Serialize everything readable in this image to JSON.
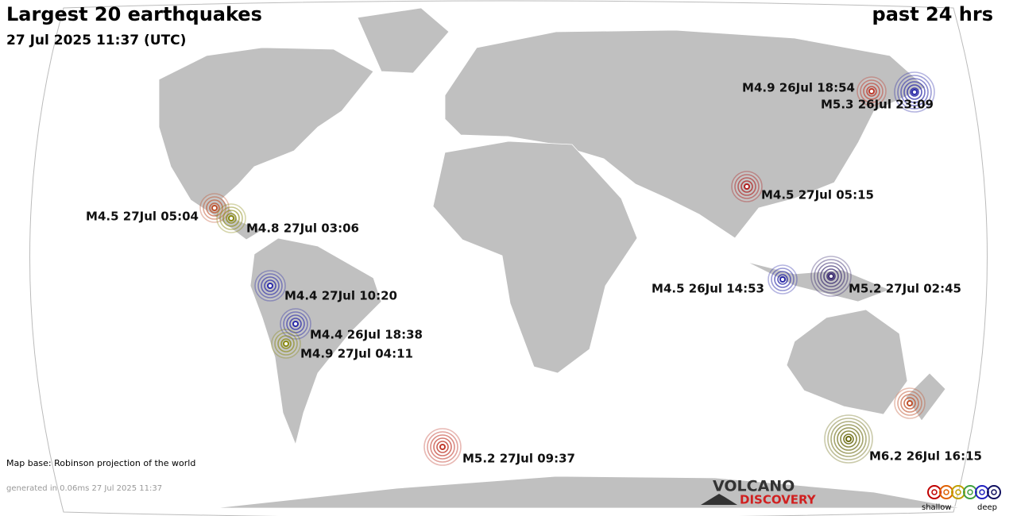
{
  "header": {
    "title": "Largest 20 earthquakes",
    "subtitle": "27 Jul 2025 11:37 (UTC)",
    "period": "past 24 hrs"
  },
  "quakes": [
    {
      "label": "M4.9 26Jul 18:54",
      "color": "#c0392b"
    },
    {
      "label": "M5.3 26Jul 23:09",
      "color": "#2a2aa8"
    },
    {
      "label": "M4.5 27Jul 05:15",
      "color": "#b02020"
    },
    {
      "label": "M4.5 27Jul 05:04",
      "color": "#c0502b"
    },
    {
      "label": "M4.8 27Jul 03:06",
      "color": "#8a8a10"
    },
    {
      "label": "M4.4 27Jul 10:20",
      "color": "#2a2aa8"
    },
    {
      "label": "M4.4 26Jul 18:38",
      "color": "#2a2aa8"
    },
    {
      "label": "M4.9 27Jul 04:11",
      "color": "#8a8a10"
    },
    {
      "label": "M4.5 26Jul 14:53",
      "color": "#2a2aa8"
    },
    {
      "label": "M5.2 27Jul 02:45",
      "color": "#3a2a70"
    },
    {
      "label": null,
      "color": "#c0502b"
    },
    {
      "label": "M6.2 26Jul 16:15",
      "color": "#6a6a10"
    },
    {
      "label": "M5.2 27Jul 09:37",
      "color": "#c0392b"
    }
  ],
  "footer": {
    "map_base": "Map base: Robinson projection of the world",
    "generated": "generated in 0.06ms 27 Jul 2025 11:37"
  },
  "logo": {
    "line1": "VOLCANO",
    "line2": "DISCOVERY"
  },
  "legend": {
    "shallow": "shallow",
    "deep": "deep",
    "colors": [
      "#c00000",
      "#e06000",
      "#c0a000",
      "#40a040",
      "#2020c0",
      "#101060"
    ]
  }
}
